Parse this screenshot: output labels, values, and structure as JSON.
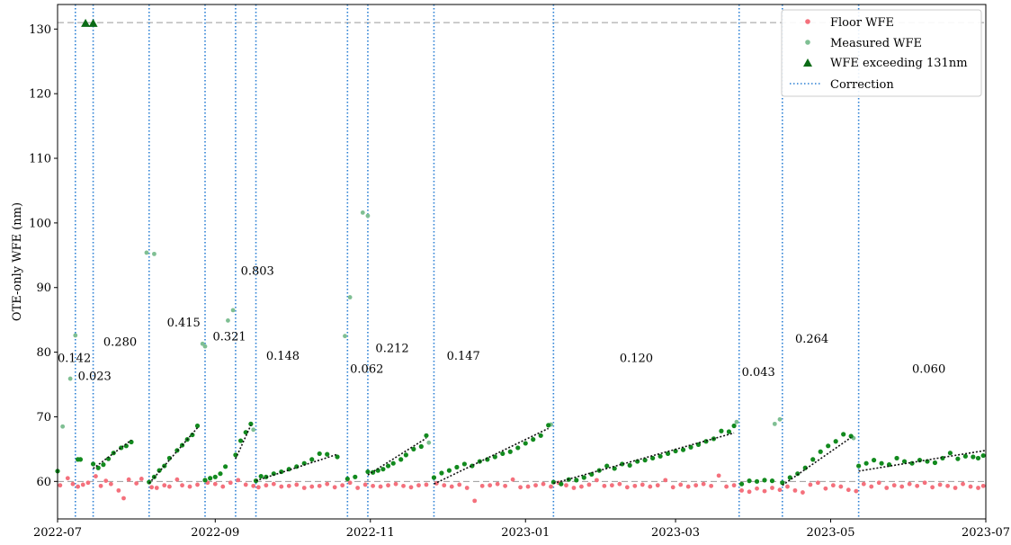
{
  "chart_data": {
    "type": "scatter",
    "title": "",
    "ylabel": "OTE-only WFE (nm)",
    "xlabel": "",
    "x_range": [
      "2022-07-01",
      "2023-07-01"
    ],
    "ylim": [
      54.2,
      133.8
    ],
    "x_ticks": [
      {
        "date": "2022-07-01",
        "label": "2022-07"
      },
      {
        "date": "2022-09-01",
        "label": "2022-09"
      },
      {
        "date": "2022-11-01",
        "label": "2022-11"
      },
      {
        "date": "2023-01-01",
        "label": "2023-01"
      },
      {
        "date": "2023-03-01",
        "label": "2023-03"
      },
      {
        "date": "2023-05-01",
        "label": "2023-05"
      },
      {
        "date": "2023-07-01",
        "label": "2023-07"
      }
    ],
    "y_ticks": [
      {
        "value": 60,
        "label": "60"
      },
      {
        "value": 70,
        "label": "70"
      },
      {
        "value": 80,
        "label": "80"
      },
      {
        "value": 90,
        "label": "90"
      },
      {
        "value": 100,
        "label": "100"
      },
      {
        "value": 110,
        "label": "110"
      },
      {
        "value": 120,
        "label": "120"
      },
      {
        "value": 130,
        "label": "130"
      }
    ],
    "grid": false,
    "legend_position": "top-right",
    "legend": [
      {
        "label": "Floor WFE",
        "marker": "dot",
        "color": "#f4707c"
      },
      {
        "label": "Measured WFE",
        "marker": "dot",
        "color": "#5fae83"
      },
      {
        "label": "WFE exceeding 131nm",
        "marker": "triangle",
        "color": "#0b6b16"
      },
      {
        "label": "Correction",
        "marker": "dotted-line",
        "color": "#2a7fd4"
      }
    ],
    "colors": {
      "floor": "#f4707c",
      "measured_excluded": "#7fbf93",
      "measured": "#128a1e",
      "exceed": "#0b6b16",
      "correction": "#2a7fd4",
      "trend": "#111111",
      "ref_line": "#9a9a9a"
    },
    "reference_lines": [
      {
        "value": 131,
        "style": "dashed"
      },
      {
        "value": 60,
        "style": "dashed"
      }
    ],
    "corrections": [
      "2022-07-08",
      "2022-07-15",
      "2022-08-06",
      "2022-08-28",
      "2022-09-09",
      "2022-09-17",
      "2022-10-23",
      "2022-10-31",
      "2022-11-26",
      "2023-01-12",
      "2023-03-26",
      "2023-04-12",
      "2023-05-12"
    ],
    "annotations": [
      {
        "text": "0.142",
        "date": "2022-07-01",
        "y": 78.5
      },
      {
        "text": "0.023",
        "date": "2022-07-09",
        "y": 75.7
      },
      {
        "text": "0.280",
        "date": "2022-07-19",
        "y": 81.0
      },
      {
        "text": "0.415",
        "date": "2022-08-13",
        "y": 84.0
      },
      {
        "text": "0.321",
        "date": "2022-08-31",
        "y": 81.8
      },
      {
        "text": "0.803",
        "date": "2022-09-11",
        "y": 92.0
      },
      {
        "text": "0.148",
        "date": "2022-09-21",
        "y": 78.8
      },
      {
        "text": "0.062",
        "date": "2022-10-24",
        "y": 76.8
      },
      {
        "text": "0.212",
        "date": "2022-11-03",
        "y": 80.0
      },
      {
        "text": "0.147",
        "date": "2022-12-01",
        "y": 78.8
      },
      {
        "text": "0.120",
        "date": "2023-02-07",
        "y": 78.5
      },
      {
        "text": "0.043",
        "date": "2023-03-27",
        "y": 76.3
      },
      {
        "text": "0.264",
        "date": "2023-04-17",
        "y": 81.5
      },
      {
        "text": "0.060",
        "date": "2023-06-02",
        "y": 76.8
      }
    ],
    "floor_wfe": [
      [
        "2022-07-02",
        59.4
      ],
      [
        "2022-07-05",
        60.5
      ],
      [
        "2022-07-07",
        59.6
      ],
      [
        "2022-07-09",
        59.2
      ],
      [
        "2022-07-11",
        59.5
      ],
      [
        "2022-07-13",
        59.8
      ],
      [
        "2022-07-16",
        60.8
      ],
      [
        "2022-07-18",
        59.3
      ],
      [
        "2022-07-20",
        60.1
      ],
      [
        "2022-07-22",
        59.6
      ],
      [
        "2022-07-25",
        58.6
      ],
      [
        "2022-07-27",
        57.4
      ],
      [
        "2022-07-29",
        60.3
      ],
      [
        "2022-08-01",
        59.7
      ],
      [
        "2022-08-03",
        60.4
      ],
      [
        "2022-08-07",
        59.1
      ],
      [
        "2022-08-09",
        59.0
      ],
      [
        "2022-08-12",
        59.4
      ],
      [
        "2022-08-14",
        59.2
      ],
      [
        "2022-08-17",
        60.3
      ],
      [
        "2022-08-19",
        59.4
      ],
      [
        "2022-08-22",
        59.2
      ],
      [
        "2022-08-25",
        59.5
      ],
      [
        "2022-08-29",
        59.8
      ],
      [
        "2022-09-01",
        59.6
      ],
      [
        "2022-09-04",
        59.2
      ],
      [
        "2022-09-07",
        59.8
      ],
      [
        "2022-09-10",
        60.2
      ],
      [
        "2022-09-13",
        59.5
      ],
      [
        "2022-09-16",
        59.3
      ],
      [
        "2022-09-18",
        59.1
      ],
      [
        "2022-09-21",
        59.4
      ],
      [
        "2022-09-24",
        59.6
      ],
      [
        "2022-09-27",
        59.2
      ],
      [
        "2022-09-30",
        59.3
      ],
      [
        "2022-10-03",
        59.5
      ],
      [
        "2022-10-06",
        59.0
      ],
      [
        "2022-10-09",
        59.2
      ],
      [
        "2022-10-12",
        59.3
      ],
      [
        "2022-10-15",
        59.6
      ],
      [
        "2022-10-18",
        59.1
      ],
      [
        "2022-10-21",
        59.4
      ],
      [
        "2022-10-24",
        59.8
      ],
      [
        "2022-10-27",
        59.0
      ],
      [
        "2022-10-30",
        59.5
      ],
      [
        "2022-11-02",
        59.3
      ],
      [
        "2022-11-05",
        59.2
      ],
      [
        "2022-11-08",
        59.4
      ],
      [
        "2022-11-11",
        59.6
      ],
      [
        "2022-11-14",
        59.3
      ],
      [
        "2022-11-17",
        59.1
      ],
      [
        "2022-11-20",
        59.4
      ],
      [
        "2022-11-23",
        59.5
      ],
      [
        "2022-11-27",
        59.7
      ],
      [
        "2022-11-30",
        59.4
      ],
      [
        "2022-12-03",
        59.2
      ],
      [
        "2022-12-06",
        59.5
      ],
      [
        "2022-12-09",
        59.0
      ],
      [
        "2022-12-12",
        57.0
      ],
      [
        "2022-12-15",
        59.3
      ],
      [
        "2022-12-18",
        59.4
      ],
      [
        "2022-12-21",
        59.6
      ],
      [
        "2022-12-24",
        59.3
      ],
      [
        "2022-12-27",
        60.3
      ],
      [
        "2022-12-30",
        59.1
      ],
      [
        "2023-01-02",
        59.2
      ],
      [
        "2023-01-05",
        59.4
      ],
      [
        "2023-01-08",
        59.6
      ],
      [
        "2023-01-11",
        59.2
      ],
      [
        "2023-01-14",
        59.8
      ],
      [
        "2023-01-17",
        59.4
      ],
      [
        "2023-01-20",
        59.0
      ],
      [
        "2023-01-23",
        59.2
      ],
      [
        "2023-01-26",
        59.5
      ],
      [
        "2023-01-29",
        60.2
      ],
      [
        "2023-02-01",
        59.3
      ],
      [
        "2023-02-04",
        59.4
      ],
      [
        "2023-02-07",
        59.6
      ],
      [
        "2023-02-10",
        59.1
      ],
      [
        "2023-02-13",
        59.3
      ],
      [
        "2023-02-16",
        59.5
      ],
      [
        "2023-02-19",
        59.2
      ],
      [
        "2023-02-22",
        59.4
      ],
      [
        "2023-02-25",
        60.2
      ],
      [
        "2023-02-28",
        59.1
      ],
      [
        "2023-03-03",
        59.5
      ],
      [
        "2023-03-06",
        59.2
      ],
      [
        "2023-03-09",
        59.4
      ],
      [
        "2023-03-12",
        59.6
      ],
      [
        "2023-03-15",
        59.3
      ],
      [
        "2023-03-18",
        60.9
      ],
      [
        "2023-03-21",
        59.2
      ],
      [
        "2023-03-24",
        59.4
      ],
      [
        "2023-03-27",
        58.6
      ],
      [
        "2023-03-30",
        58.4
      ],
      [
        "2023-04-02",
        58.9
      ],
      [
        "2023-04-05",
        58.5
      ],
      [
        "2023-04-08",
        59.0
      ],
      [
        "2023-04-11",
        58.7
      ],
      [
        "2023-04-14",
        59.2
      ],
      [
        "2023-04-17",
        58.6
      ],
      [
        "2023-04-20",
        58.3
      ],
      [
        "2023-04-23",
        59.5
      ],
      [
        "2023-04-26",
        59.8
      ],
      [
        "2023-04-29",
        58.9
      ],
      [
        "2023-05-02",
        59.4
      ],
      [
        "2023-05-05",
        59.2
      ],
      [
        "2023-05-08",
        58.7
      ],
      [
        "2023-05-11",
        58.5
      ],
      [
        "2023-05-14",
        59.6
      ],
      [
        "2023-05-17",
        59.2
      ],
      [
        "2023-05-20",
        59.8
      ],
      [
        "2023-05-23",
        59.0
      ],
      [
        "2023-05-26",
        59.4
      ],
      [
        "2023-05-29",
        59.2
      ],
      [
        "2023-06-01",
        59.6
      ],
      [
        "2023-06-04",
        59.3
      ],
      [
        "2023-06-07",
        59.8
      ],
      [
        "2023-06-10",
        59.1
      ],
      [
        "2023-06-13",
        59.5
      ],
      [
        "2023-06-16",
        59.3
      ],
      [
        "2023-06-19",
        59.0
      ],
      [
        "2023-06-22",
        59.6
      ],
      [
        "2023-06-25",
        59.2
      ],
      [
        "2023-06-28",
        59.0
      ],
      [
        "2023-06-30",
        59.3
      ]
    ],
    "measured_wfe": [
      [
        "2022-07-01",
        61.6
      ],
      [
        "2022-07-09",
        63.4
      ],
      [
        "2022-07-10",
        63.4
      ],
      [
        "2022-07-15",
        62.7
      ],
      [
        "2022-07-17",
        62.1
      ],
      [
        "2022-07-19",
        62.6
      ],
      [
        "2022-07-21",
        63.5
      ],
      [
        "2022-07-23",
        64.4
      ],
      [
        "2022-07-26",
        65.2
      ],
      [
        "2022-07-28",
        65.5
      ],
      [
        "2022-07-30",
        66.1
      ],
      [
        "2022-08-06",
        59.9
      ],
      [
        "2022-08-08",
        60.7
      ],
      [
        "2022-08-10",
        61.7
      ],
      [
        "2022-08-12",
        62.4
      ],
      [
        "2022-08-14",
        63.6
      ],
      [
        "2022-08-17",
        64.8
      ],
      [
        "2022-08-19",
        65.6
      ],
      [
        "2022-08-21",
        66.5
      ],
      [
        "2022-08-23",
        67.2
      ],
      [
        "2022-08-25",
        68.6
      ],
      [
        "2022-08-28",
        60.2
      ],
      [
        "2022-08-30",
        60.5
      ],
      [
        "2022-09-01",
        60.7
      ],
      [
        "2022-09-03",
        61.2
      ],
      [
        "2022-09-05",
        62.3
      ],
      [
        "2022-09-09",
        64.1
      ],
      [
        "2022-09-11",
        66.3
      ],
      [
        "2022-09-13",
        67.6
      ],
      [
        "2022-09-15",
        68.9
      ],
      [
        "2022-09-17",
        60.1
      ],
      [
        "2022-09-19",
        60.8
      ],
      [
        "2022-09-21",
        60.7
      ],
      [
        "2022-09-24",
        61.2
      ],
      [
        "2022-09-27",
        61.5
      ],
      [
        "2022-09-30",
        61.9
      ],
      [
        "2022-10-03",
        62.3
      ],
      [
        "2022-10-06",
        62.8
      ],
      [
        "2022-10-09",
        63.4
      ],
      [
        "2022-10-12",
        64.3
      ],
      [
        "2022-10-15",
        64.2
      ],
      [
        "2022-10-19",
        63.8
      ],
      [
        "2022-10-23",
        60.4
      ],
      [
        "2022-10-26",
        60.7
      ],
      [
        "2022-10-31",
        61.5
      ],
      [
        "2022-11-02",
        61.4
      ],
      [
        "2022-11-04",
        61.7
      ],
      [
        "2022-11-06",
        61.9
      ],
      [
        "2022-11-08",
        62.4
      ],
      [
        "2022-11-10",
        62.8
      ],
      [
        "2022-11-13",
        63.4
      ],
      [
        "2022-11-15",
        64.1
      ],
      [
        "2022-11-18",
        65.0
      ],
      [
        "2022-11-21",
        65.4
      ],
      [
        "2022-11-23",
        67.1
      ],
      [
        "2022-11-26",
        60.6
      ],
      [
        "2022-11-29",
        61.3
      ],
      [
        "2022-12-02",
        61.7
      ],
      [
        "2022-12-05",
        62.2
      ],
      [
        "2022-12-08",
        62.7
      ],
      [
        "2022-12-11",
        62.4
      ],
      [
        "2022-12-14",
        63.1
      ],
      [
        "2022-12-17",
        63.4
      ],
      [
        "2022-12-20",
        63.8
      ],
      [
        "2022-12-23",
        64.3
      ],
      [
        "2022-12-26",
        64.6
      ],
      [
        "2022-12-29",
        65.2
      ],
      [
        "2023-01-01",
        65.9
      ],
      [
        "2023-01-04",
        66.5
      ],
      [
        "2023-01-07",
        67.1
      ],
      [
        "2023-01-10",
        68.7
      ],
      [
        "2023-01-12",
        59.9
      ],
      [
        "2023-01-15",
        59.6
      ],
      [
        "2023-01-18",
        60.3
      ],
      [
        "2023-01-21",
        60.2
      ],
      [
        "2023-01-24",
        60.6
      ],
      [
        "2023-01-27",
        61.1
      ],
      [
        "2023-01-30",
        61.7
      ],
      [
        "2023-02-02",
        62.4
      ],
      [
        "2023-02-05",
        62.0
      ],
      [
        "2023-02-08",
        62.7
      ],
      [
        "2023-02-11",
        62.5
      ],
      [
        "2023-02-14",
        63.1
      ],
      [
        "2023-02-17",
        63.3
      ],
      [
        "2023-02-20",
        63.6
      ],
      [
        "2023-02-23",
        63.9
      ],
      [
        "2023-02-26",
        64.3
      ],
      [
        "2023-03-01",
        64.7
      ],
      [
        "2023-03-04",
        64.9
      ],
      [
        "2023-03-07",
        65.3
      ],
      [
        "2023-03-10",
        65.7
      ],
      [
        "2023-03-13",
        66.2
      ],
      [
        "2023-03-16",
        66.6
      ],
      [
        "2023-03-19",
        67.8
      ],
      [
        "2023-03-22",
        67.7
      ],
      [
        "2023-03-24",
        68.6
      ],
      [
        "2023-03-27",
        59.6
      ],
      [
        "2023-03-30",
        60.1
      ],
      [
        "2023-04-02",
        60.0
      ],
      [
        "2023-04-05",
        60.2
      ],
      [
        "2023-04-08",
        60.1
      ],
      [
        "2023-04-12",
        59.8
      ],
      [
        "2023-04-15",
        60.6
      ],
      [
        "2023-04-18",
        61.2
      ],
      [
        "2023-04-21",
        62.1
      ],
      [
        "2023-04-24",
        63.4
      ],
      [
        "2023-04-27",
        64.6
      ],
      [
        "2023-04-30",
        65.5
      ],
      [
        "2023-05-03",
        66.2
      ],
      [
        "2023-05-06",
        67.3
      ],
      [
        "2023-05-09",
        67.0
      ],
      [
        "2023-05-12",
        62.4
      ],
      [
        "2023-05-15",
        62.8
      ],
      [
        "2023-05-18",
        63.3
      ],
      [
        "2023-05-21",
        62.8
      ],
      [
        "2023-05-24",
        62.6
      ],
      [
        "2023-05-27",
        63.6
      ],
      [
        "2023-05-30",
        63.1
      ],
      [
        "2023-06-02",
        62.8
      ],
      [
        "2023-06-05",
        63.3
      ],
      [
        "2023-06-08",
        63.1
      ],
      [
        "2023-06-11",
        62.9
      ],
      [
        "2023-06-14",
        63.6
      ],
      [
        "2023-06-17",
        64.4
      ],
      [
        "2023-06-20",
        63.5
      ],
      [
        "2023-06-23",
        63.9
      ],
      [
        "2023-06-26",
        63.8
      ],
      [
        "2023-06-28",
        63.6
      ],
      [
        "2023-06-30",
        64.0
      ]
    ],
    "measured_wfe_excluded": [
      [
        "2022-07-03",
        68.5
      ],
      [
        "2022-07-06",
        75.9
      ],
      [
        "2022-07-08",
        82.6
      ],
      [
        "2022-08-05",
        95.4
      ],
      [
        "2022-08-08",
        95.2
      ],
      [
        "2022-08-27",
        81.3
      ],
      [
        "2022-08-28",
        80.9
      ],
      [
        "2022-09-06",
        84.9
      ],
      [
        "2022-09-08",
        86.5
      ],
      [
        "2022-09-16",
        68.0
      ],
      [
        "2022-10-22",
        82.5
      ],
      [
        "2022-10-24",
        88.5
      ],
      [
        "2022-10-29",
        101.6
      ],
      [
        "2022-10-31",
        101.1
      ],
      [
        "2022-11-24",
        66.0
      ],
      [
        "2023-01-11",
        68.8
      ],
      [
        "2023-03-25",
        69.2
      ],
      [
        "2023-04-09",
        68.9
      ],
      [
        "2023-04-11",
        69.6
      ],
      [
        "2023-05-10",
        66.7
      ]
    ],
    "wfe_exceeding": [
      [
        "2022-07-12",
        130.9
      ],
      [
        "2022-07-15",
        130.9
      ]
    ],
    "trend_lines": [
      [
        [
          "2022-07-15",
          62.0
        ],
        [
          "2022-07-30",
          66.4
        ]
      ],
      [
        [
          "2022-08-06",
          59.7
        ],
        [
          "2022-08-25",
          68.3
        ]
      ],
      [
        [
          "2022-09-09",
          63.5
        ],
        [
          "2022-09-15",
          68.7
        ]
      ],
      [
        [
          "2022-09-17",
          60.1
        ],
        [
          "2022-10-19",
          64.2
        ]
      ],
      [
        [
          "2022-10-31",
          61.0
        ],
        [
          "2022-11-23",
          66.7
        ]
      ],
      [
        [
          "2022-11-26",
          59.6
        ],
        [
          "2023-01-10",
          68.2
        ]
      ],
      [
        [
          "2023-01-12",
          59.7
        ],
        [
          "2023-03-24",
          67.5
        ]
      ],
      [
        [
          "2023-04-12",
          59.4
        ],
        [
          "2023-05-09",
          66.8
        ]
      ],
      [
        [
          "2023-05-12",
          61.6
        ],
        [
          "2023-07-01",
          64.8
        ]
      ]
    ]
  }
}
